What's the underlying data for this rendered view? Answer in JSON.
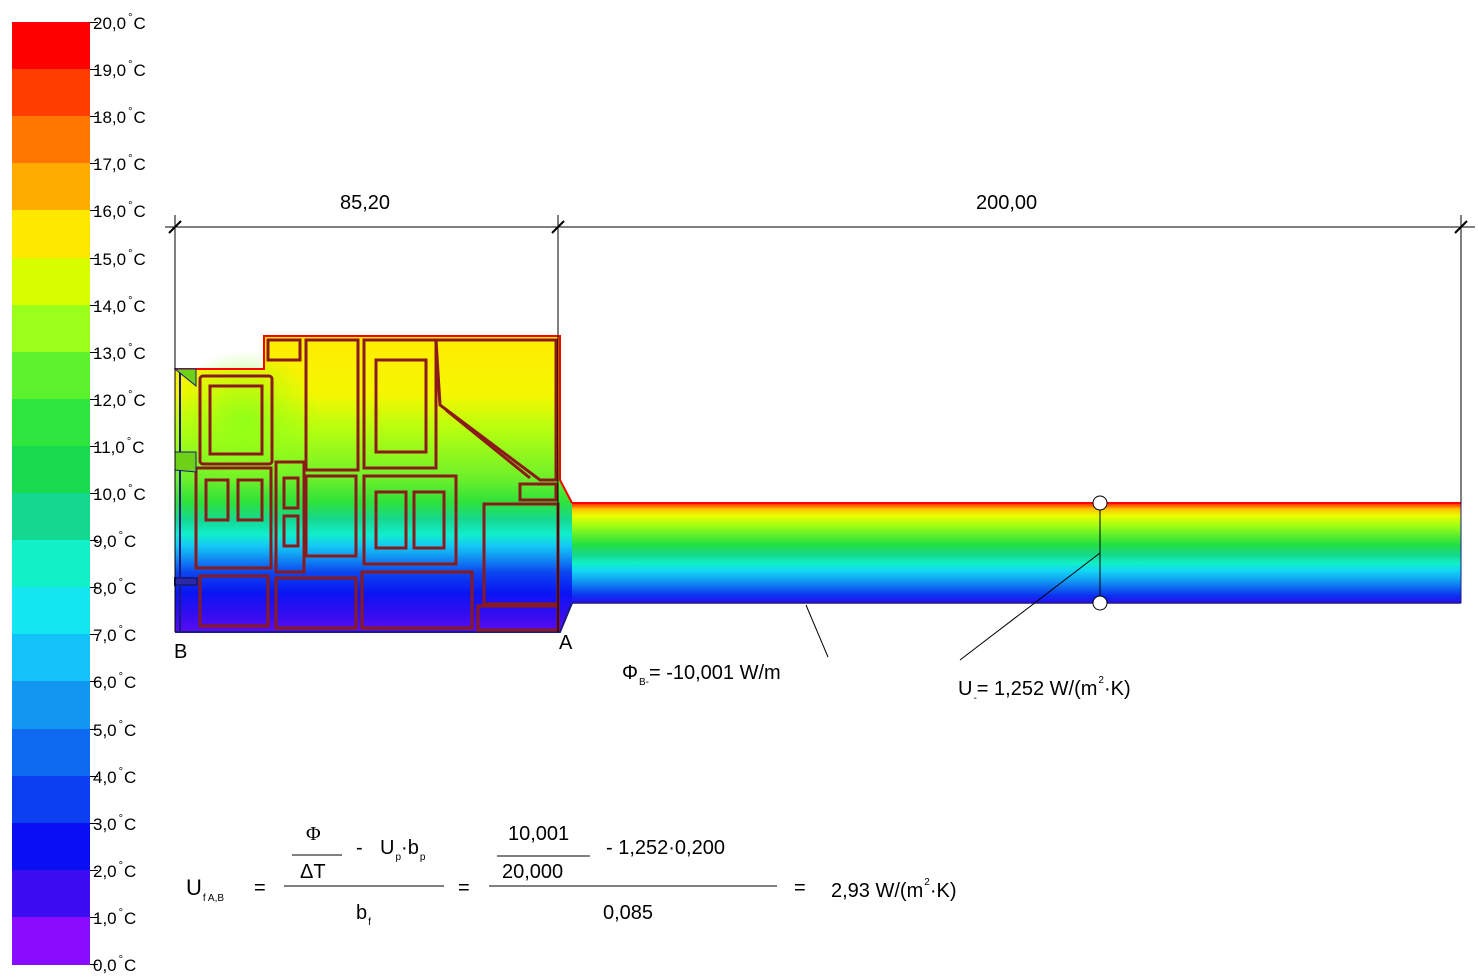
{
  "scale": {
    "labels": [
      "20,0",
      "19,0",
      "18,0",
      "17,0",
      "16,0",
      "15,0",
      "14,0",
      "13,0",
      "12,0",
      "11,0",
      "10,0",
      "9,0",
      "8,0",
      "7,0",
      "6,0",
      "5,0",
      "4,0",
      "3,0",
      "2,0",
      "1,0",
      "0,0"
    ],
    "unit": "C",
    "degree": "°",
    "colors": [
      "#ff0000",
      "#ff3d00",
      "#ff7700",
      "#ffab00",
      "#ffe800",
      "#d7ff00",
      "#9bff1c",
      "#5cf22e",
      "#2ee63d",
      "#18db4f",
      "#14d790",
      "#12f0c8",
      "#13e6f0",
      "#13c2f8",
      "#1197f2",
      "#0d6af0",
      "#0b3ff0",
      "#0a0ef2",
      "#3e0cf0",
      "#8a0cff"
    ]
  },
  "dimensions": {
    "left": "85,20",
    "right": "200,00"
  },
  "points": {
    "a": "A",
    "b": "B"
  },
  "flux": {
    "symbol": "Φ",
    "sub": "B-",
    "value": "= -10,001 W/m"
  },
  "u_value": {
    "symbol": "U",
    "sub": "-",
    "value": "= 1,252 W/(m",
    "exp": "2",
    "tail": "·K)"
  },
  "formula": {
    "lhs_symbol": "U",
    "lhs_sub": "f A,B",
    "eq": "=",
    "phi": "Φ",
    "delta_t": "ΔT",
    "minus": "-",
    "up": "U",
    "up_sub": "p",
    "dot": "·",
    "bp": "b",
    "bp_sub": "p",
    "bf": "b",
    "bf_sub": "f",
    "num_top": "10,001",
    "num_bottom": "20,000",
    "num_rest": "-  1,252·0,200",
    "denominator": "0,085",
    "result": "2,93 W/(m",
    "result_exp": "2",
    "result_tail": "·K)"
  }
}
